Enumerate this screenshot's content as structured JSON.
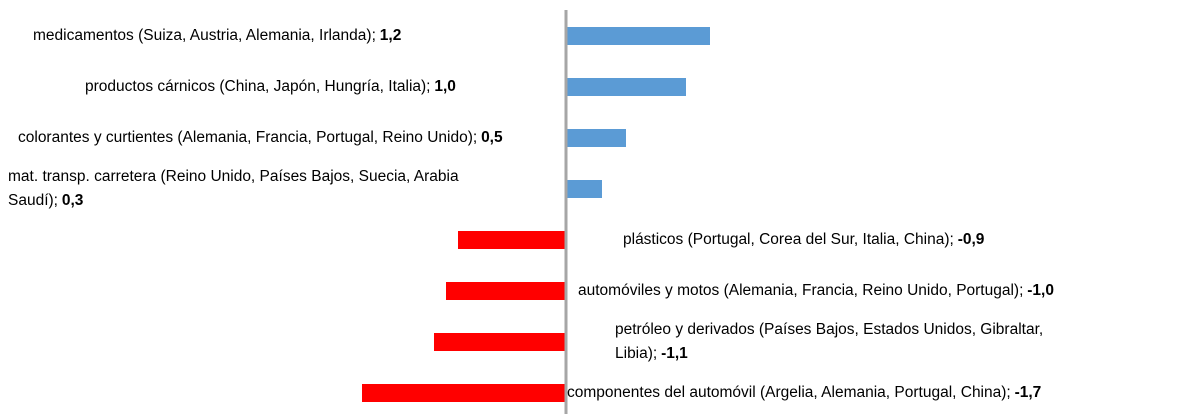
{
  "chart_data": {
    "type": "bar",
    "orientation": "horizontal",
    "categories": [
      "medicamentos (Suiza, Austria, Alemania, Irlanda);",
      "productos cárnicos (China, Japón, Hungría, Italia);",
      "colorantes y curtientes (Alemania, Francia, Portugal, Reino Unido);",
      "mat. transp. carretera (Reino Unido, Países Bajos, Suecia, Arabia Saudí);",
      "plásticos (Portugal, Corea del Sur, Italia, China);",
      "automóviles y motos (Alemania, Francia, Reino Unido, Portugal);",
      "petróleo y derivados (Países Bajos, Estados Unidos, Gibraltar, Libia);",
      "componentes del automóvil (Argelia, Alemania, Portugal, China);"
    ],
    "values": [
      1.2,
      1.0,
      0.5,
      0.3,
      -0.9,
      -1.0,
      -1.1,
      -1.7
    ],
    "value_labels": [
      "1,2",
      "1,0",
      "0,5",
      "0,3",
      "-0,9",
      "-1,0",
      "-1,1",
      "-1,7"
    ],
    "colors": [
      "#5b9bd5",
      "#5b9bd5",
      "#5b9bd5",
      "#5b9bd5",
      "#ff0000",
      "#ff0000",
      "#ff0000",
      "#ff0000"
    ]
  }
}
